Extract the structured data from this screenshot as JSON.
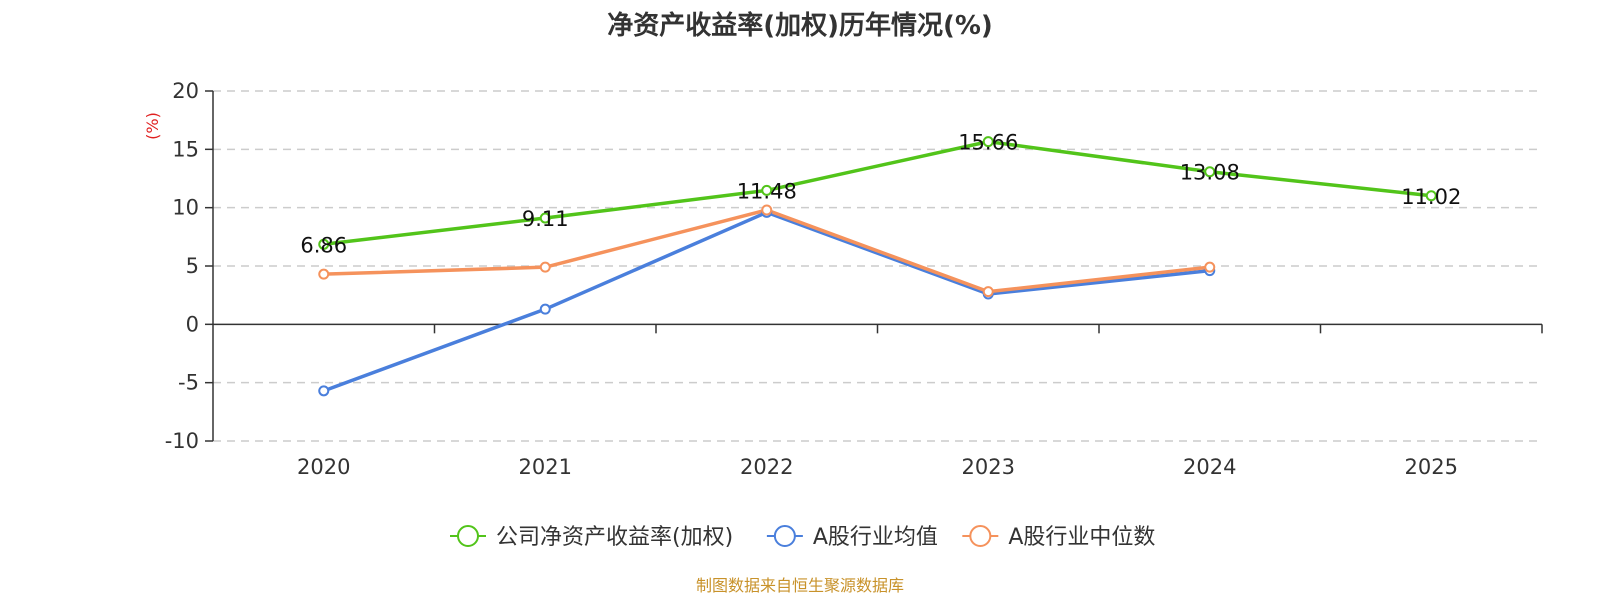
{
  "chart_data": {
    "type": "line",
    "title": "净资产收益率(加权)历年情况(%)",
    "ylabel": "(%)",
    "xlabel": "",
    "categories": [
      "2020",
      "2021",
      "2022",
      "2023",
      "2024",
      "2025"
    ],
    "ylim": [
      -10,
      20
    ],
    "yticks": [
      -10,
      -5,
      0,
      5,
      10,
      15,
      20
    ],
    "grid": true,
    "legend_position": "bottom",
    "series": [
      {
        "name": "公司净资产收益率(加权)",
        "color": "#52c41a",
        "values": [
          6.86,
          9.11,
          11.48,
          15.66,
          13.08,
          11.02
        ],
        "labels": [
          "6.86",
          "9.11",
          "11.48",
          "15.66",
          "13.08",
          "11.02"
        ]
      },
      {
        "name": "A股行业均值",
        "color": "#4a7fdc",
        "values": [
          -5.7,
          1.3,
          9.6,
          2.6,
          4.6,
          null
        ]
      },
      {
        "name": "A股行业中位数",
        "color": "#f5925c",
        "values": [
          4.3,
          4.9,
          9.8,
          2.8,
          4.9,
          null
        ]
      }
    ]
  },
  "source": "制图数据来自恒生聚源数据库"
}
